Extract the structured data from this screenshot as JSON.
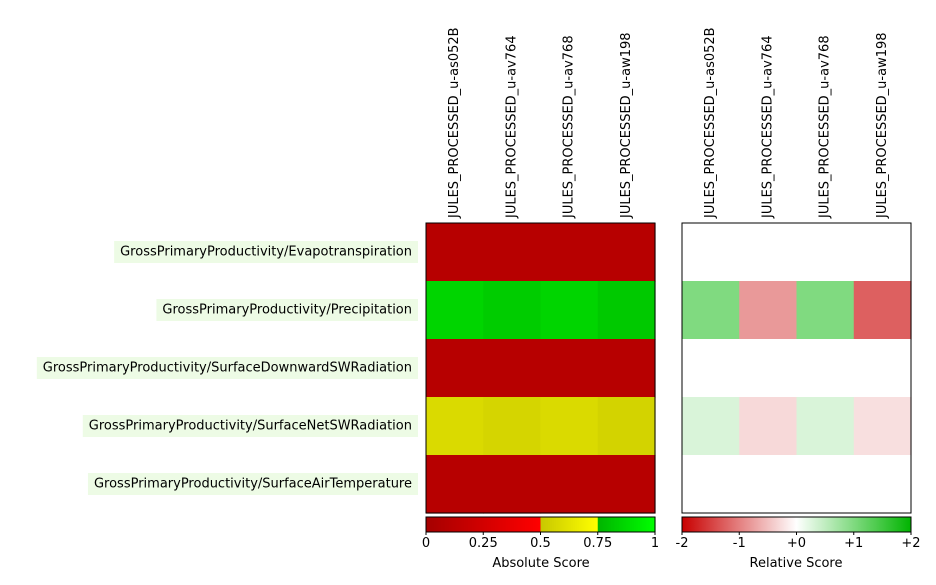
{
  "chart_data": {
    "type": "heatmap",
    "rows": [
      "GrossPrimaryProductivity/Evapotranspiration",
      "GrossPrimaryProductivity/Precipitation",
      "GrossPrimaryProductivity/SurfaceDownwardSWRadiation",
      "GrossPrimaryProductivity/SurfaceNetSWRadiation",
      "GrossPrimaryProductivity/SurfaceAirTemperature"
    ],
    "columns": [
      "JULES_PROCESSED_u-as052B",
      "JULES_PROCESSED_u-av764",
      "JULES_PROCESSED_u-av768",
      "JULES_PROCESSED_u-aw198"
    ],
    "absolute": {
      "colorbar_label": "Absolute Score",
      "range": [
        0,
        1
      ],
      "ticks": [
        0,
        0.25,
        0.5,
        0.75,
        1
      ],
      "tick_labels": [
        "0",
        "0.25",
        "0.5",
        "0.75",
        "1"
      ],
      "colors": [
        "#a50000",
        "#ff0000",
        "#c8c800",
        "#ffff00",
        "#00b400",
        "#00ff00"
      ],
      "values": [
        [
          0.1,
          0.1,
          0.1,
          0.1
        ],
        [
          0.86,
          0.83,
          0.86,
          0.82
        ],
        [
          0.1,
          0.1,
          0.1,
          0.1
        ],
        [
          0.58,
          0.56,
          0.58,
          0.55
        ],
        [
          0.1,
          0.1,
          0.1,
          0.1
        ]
      ]
    },
    "relative": {
      "colorbar_label": "Relative Score",
      "range": [
        -2,
        2
      ],
      "ticks": [
        -2,
        -1,
        0,
        1,
        2
      ],
      "tick_labels": [
        "-2",
        "-1",
        "+0",
        "+1",
        "+2"
      ],
      "colors": [
        "#c80000",
        "#ffffff",
        "#00b400"
      ],
      "values": [
        [
          null,
          null,
          null,
          null
        ],
        [
          1.0,
          -0.8,
          1.0,
          -1.25
        ],
        [
          null,
          null,
          null,
          null
        ],
        [
          0.3,
          -0.3,
          0.3,
          -0.25
        ],
        [
          null,
          null,
          null,
          null
        ]
      ]
    }
  }
}
